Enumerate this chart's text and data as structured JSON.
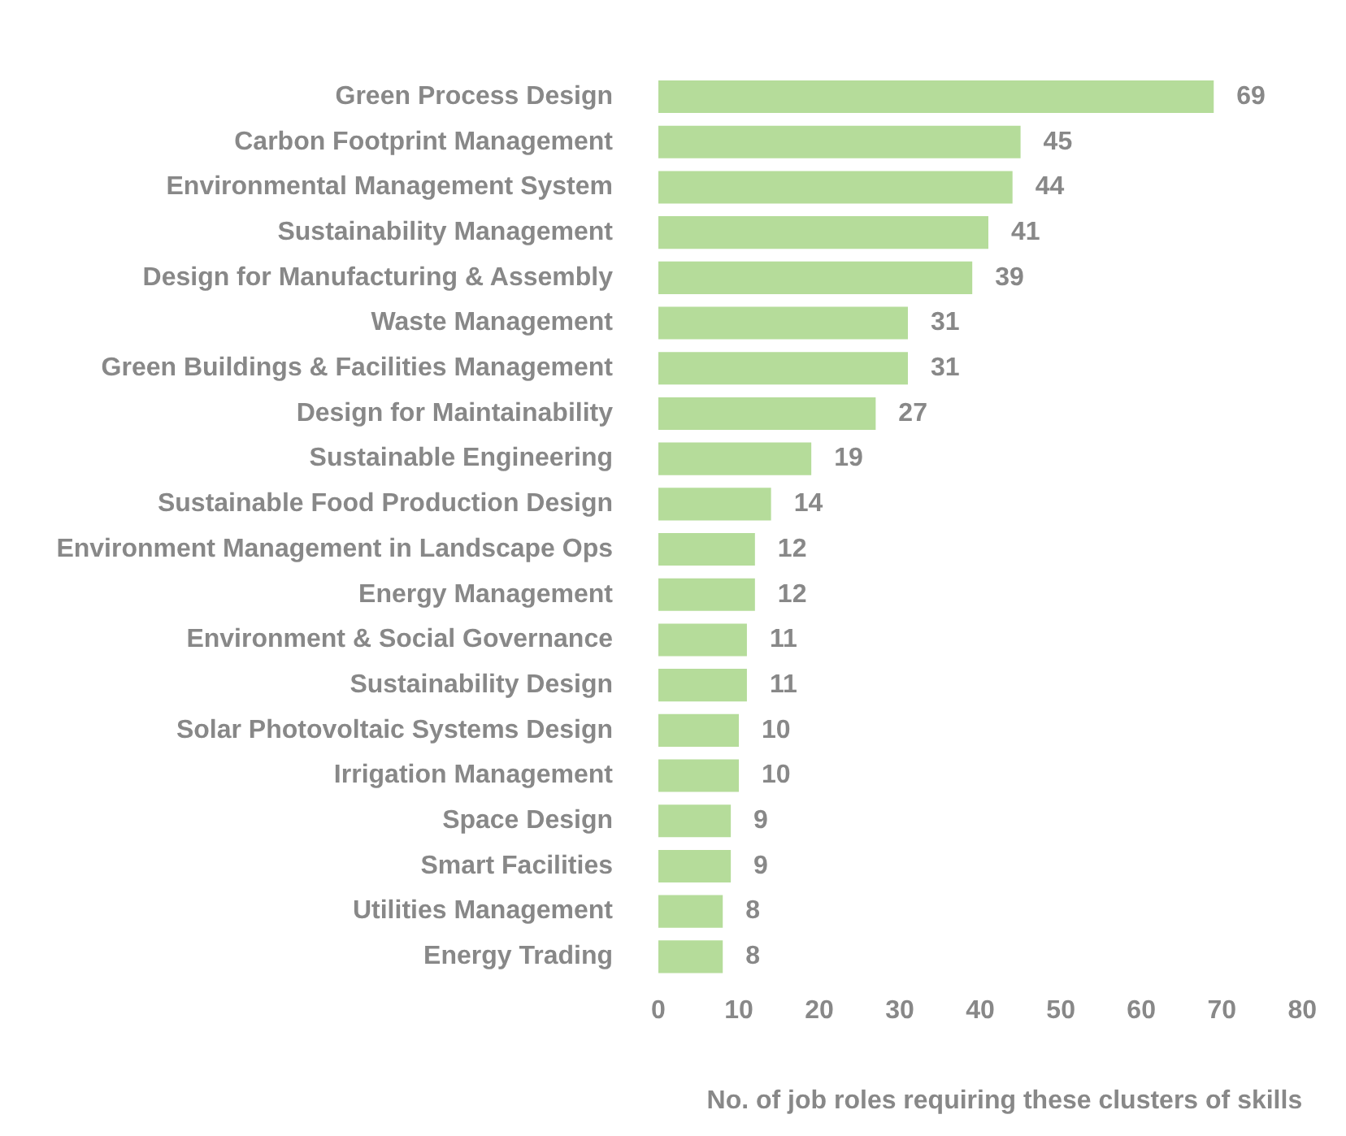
{
  "chart_data": {
    "type": "bar",
    "orientation": "horizontal",
    "xlabel": "No. of job roles requiring these clusters of skills",
    "categories": [
      "Green Process Design",
      "Carbon Footprint Management",
      "Environmental Management System",
      "Sustainability Management",
      "Design for Manufacturing & Assembly",
      "Waste Management",
      "Green Buildings & Facilities Management",
      "Design for Maintainability",
      "Sustainable Engineering",
      "Sustainable Food Production Design",
      "Environment Management in Landscape Ops",
      "Energy Management",
      "Environment & Social Governance",
      "Sustainability Design",
      "Solar Photovoltaic Systems Design",
      "Irrigation Management",
      "Space Design",
      "Smart Facilities",
      "Utilities Management",
      "Energy Trading"
    ],
    "values": [
      69,
      45,
      44,
      41,
      39,
      31,
      31,
      27,
      19,
      14,
      12,
      12,
      11,
      11,
      10,
      10,
      9,
      9,
      8,
      8
    ],
    "color": "#b5dc9a",
    "xlim": [
      0,
      80
    ],
    "xticks": [
      0,
      10,
      20,
      30,
      40,
      50,
      60,
      70,
      80
    ],
    "grid": false,
    "legend": false,
    "data_labels": true
  }
}
